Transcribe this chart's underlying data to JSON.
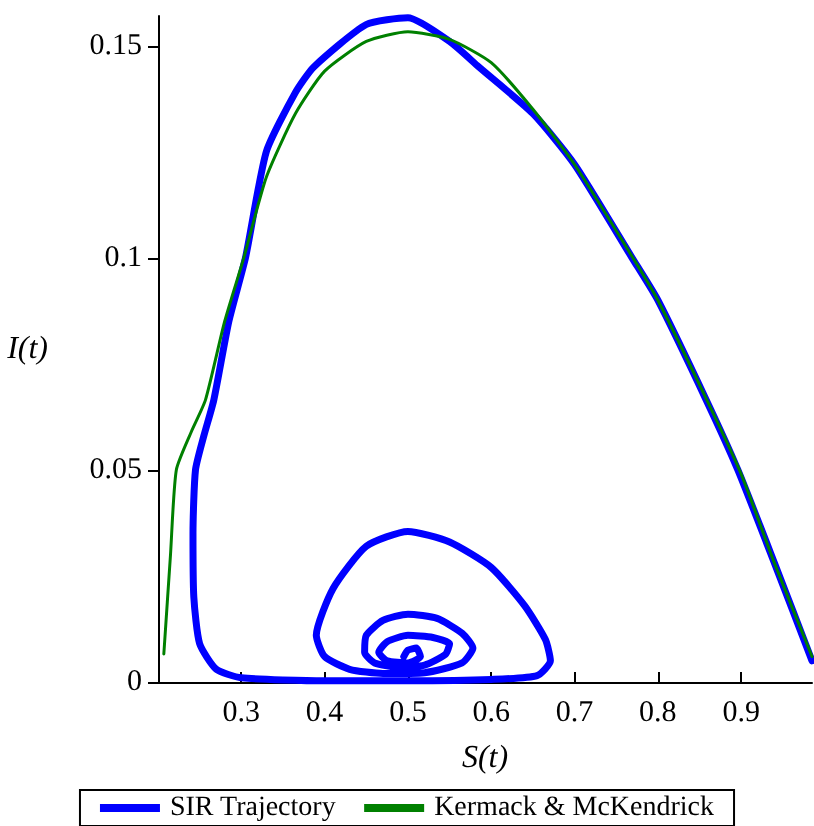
{
  "chart_data": {
    "type": "line",
    "xlabel": "S(t)",
    "ylabel": "I(t)",
    "xlim": [
      0.2,
      0.985
    ],
    "xticks": [
      0.3,
      0.4,
      0.5,
      0.6,
      0.7,
      0.8,
      0.9
    ],
    "ylim": [
      0,
      0.157
    ],
    "yticks": [
      0,
      0.05,
      0.1,
      0.15
    ],
    "grid": false,
    "legend": "bottom",
    "marker": "none",
    "line_style": "solid",
    "series": [
      {
        "name": "SIR Trajectory",
        "color": "#0000ff",
        "x": [
          0.985,
          0.94,
          0.896,
          0.858,
          0.8,
          0.769,
          0.7,
          0.65,
          0.585,
          0.55,
          0.5,
          0.45,
          0.387,
          0.365,
          0.33,
          0.305,
          0.285,
          0.267,
          0.255,
          0.245,
          0.242,
          0.243,
          0.25,
          0.27,
          0.3,
          0.4,
          0.5,
          0.6,
          0.655,
          0.671,
          0.665,
          0.64,
          0.6,
          0.55,
          0.5,
          0.45,
          0.41,
          0.39,
          0.4,
          0.43,
          0.47,
          0.52,
          0.565,
          0.578,
          0.565,
          0.535,
          0.5,
          0.47,
          0.45,
          0.448,
          0.46,
          0.49,
          0.52,
          0.545,
          0.55,
          0.53,
          0.5,
          0.475,
          0.465,
          0.475,
          0.5,
          0.515,
          0.51,
          0.5,
          0.495
        ],
        "values": [
          0.005,
          0.028,
          0.05,
          0.0665,
          0.09,
          0.1,
          0.122,
          0.134,
          0.145,
          0.151,
          0.1566,
          0.155,
          0.145,
          0.139,
          0.125,
          0.1,
          0.085,
          0.0665,
          0.058,
          0.05,
          0.035,
          0.02,
          0.009,
          0.003,
          0.001,
          0.0003,
          0.0003,
          0.0006,
          0.0015,
          0.005,
          0.01,
          0.018,
          0.027,
          0.033,
          0.0355,
          0.032,
          0.022,
          0.011,
          0.006,
          0.003,
          0.002,
          0.0022,
          0.0045,
          0.008,
          0.0115,
          0.015,
          0.016,
          0.0145,
          0.011,
          0.007,
          0.0045,
          0.0035,
          0.004,
          0.0065,
          0.009,
          0.0105,
          0.011,
          0.0095,
          0.007,
          0.005,
          0.0045,
          0.006,
          0.008,
          0.0075,
          0.006
        ]
      },
      {
        "name": "Kermack & McKendrick",
        "color": "#008000",
        "x": [
          0.207,
          0.215,
          0.222,
          0.24,
          0.257,
          0.28,
          0.303,
          0.33,
          0.365,
          0.4,
          0.45,
          0.5,
          0.55,
          0.6,
          0.65,
          0.7,
          0.77,
          0.8,
          0.86,
          0.9,
          0.94,
          0.985
        ],
        "values": [
          0.0066,
          0.03,
          0.05,
          0.059,
          0.0665,
          0.085,
          0.1,
          0.119,
          0.134,
          0.144,
          0.151,
          0.1533,
          0.1515,
          0.146,
          0.135,
          0.122,
          0.1,
          0.09,
          0.066,
          0.049,
          0.028,
          0.006
        ]
      }
    ]
  }
}
